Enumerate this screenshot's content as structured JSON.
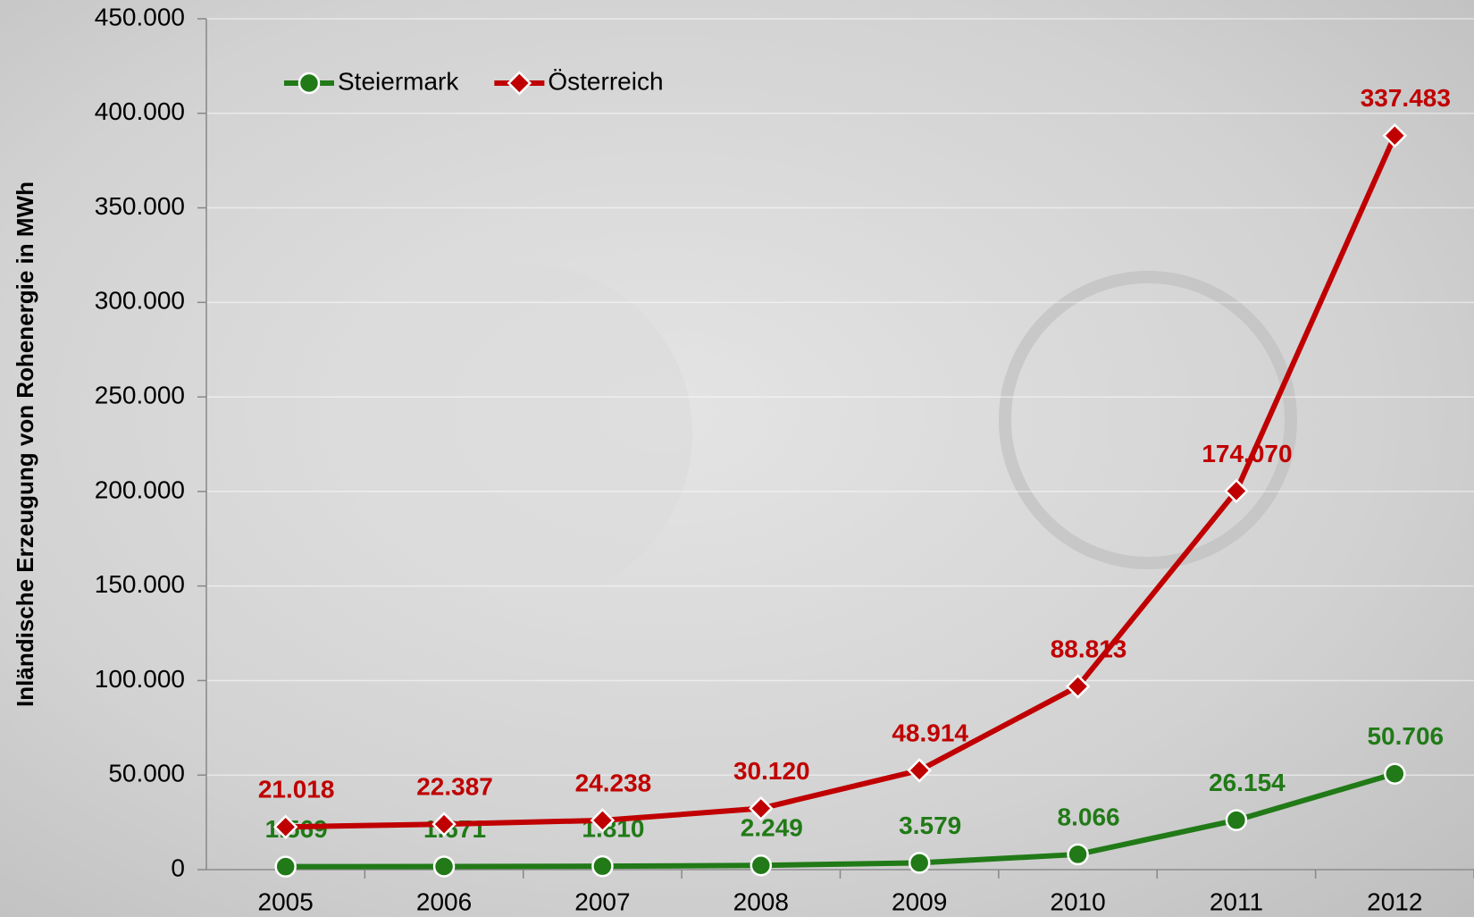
{
  "chart_data": {
    "type": "line",
    "stacked": true,
    "y_label": "Inländische Erzeugung von Rohenergie in MWh",
    "categories": [
      "2005",
      "2006",
      "2007",
      "2008",
      "2009",
      "2010",
      "2011",
      "2012"
    ],
    "series": [
      {
        "name": "Steiermark",
        "color": "#217a17",
        "marker": "circle",
        "values": [
          1569,
          1671,
          1810,
          2249,
          3579,
          8066,
          26154,
          50706
        ],
        "value_labels": [
          "1.569",
          "1.671",
          "1.810",
          "2.249",
          "3.579",
          "8.066",
          "26.154",
          "50.706"
        ]
      },
      {
        "name": "Österreich",
        "color": "#c00000",
        "marker": "diamond",
        "values": [
          21018,
          22387,
          24238,
          30120,
          48914,
          88813,
          174070,
          337483
        ],
        "value_labels": [
          "21.018",
          "22.387",
          "24.238",
          "30.120",
          "48.914",
          "88.813",
          "174.070",
          "337.483"
        ]
      }
    ],
    "ylim": [
      0,
      450000
    ],
    "yticks": [
      0,
      {
        "value": 50000,
        "label": "50.000"
      },
      {
        "value": 100000,
        "label": "100.000"
      },
      {
        "value": 150000,
        "label": "150.000"
      },
      {
        "value": 200000,
        "label": "200.000"
      },
      {
        "value": 250000,
        "label": "250.000"
      },
      {
        "value": 300000,
        "label": "300.000"
      },
      {
        "value": 350000,
        "label": "350.000"
      },
      {
        "value": 400000,
        "label": "400.000"
      },
      {
        "value": 450000,
        "label": "450.000"
      }
    ],
    "grid": true,
    "legend": "top-left"
  }
}
